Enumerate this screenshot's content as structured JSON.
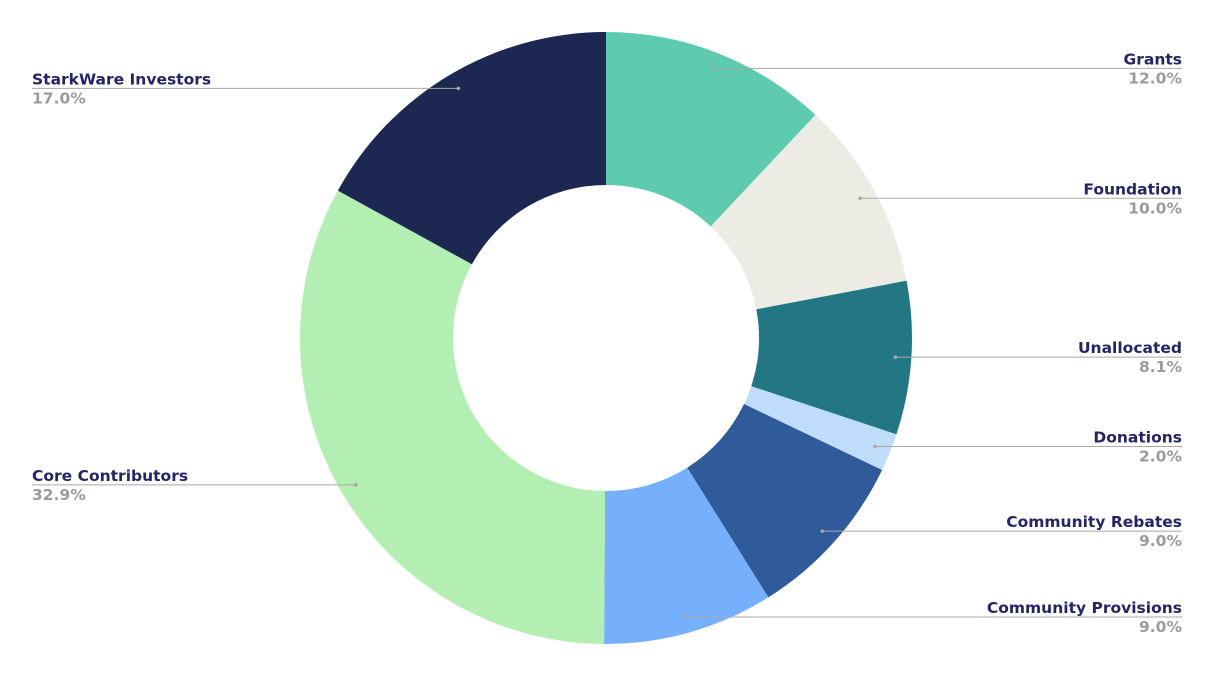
{
  "chart_data": {
    "type": "pie",
    "donut": true,
    "categories": [
      "Grants",
      "Foundation",
      "Unallocated",
      "Donations",
      "Community Rebates",
      "Community Provisions",
      "Core Contributors",
      "StarkWare Investors"
    ],
    "values": [
      12.0,
      10.0,
      8.1,
      2.0,
      9.0,
      9.0,
      32.9,
      17.0
    ],
    "labels": [
      "12.0%",
      "10.0%",
      "8.1%",
      "2.0%",
      "9.0%",
      "9.0%",
      "32.9%",
      "17.0%"
    ],
    "colors": [
      "#5ecbb0",
      "#ecebe4",
      "#237785",
      "#bfdcfb",
      "#2f5b9a",
      "#76b0fd",
      "#b3efb2",
      "#1c2752"
    ],
    "label_color": "#262466",
    "percent_color": "#9b9b9b",
    "start": "top, clockwise"
  }
}
